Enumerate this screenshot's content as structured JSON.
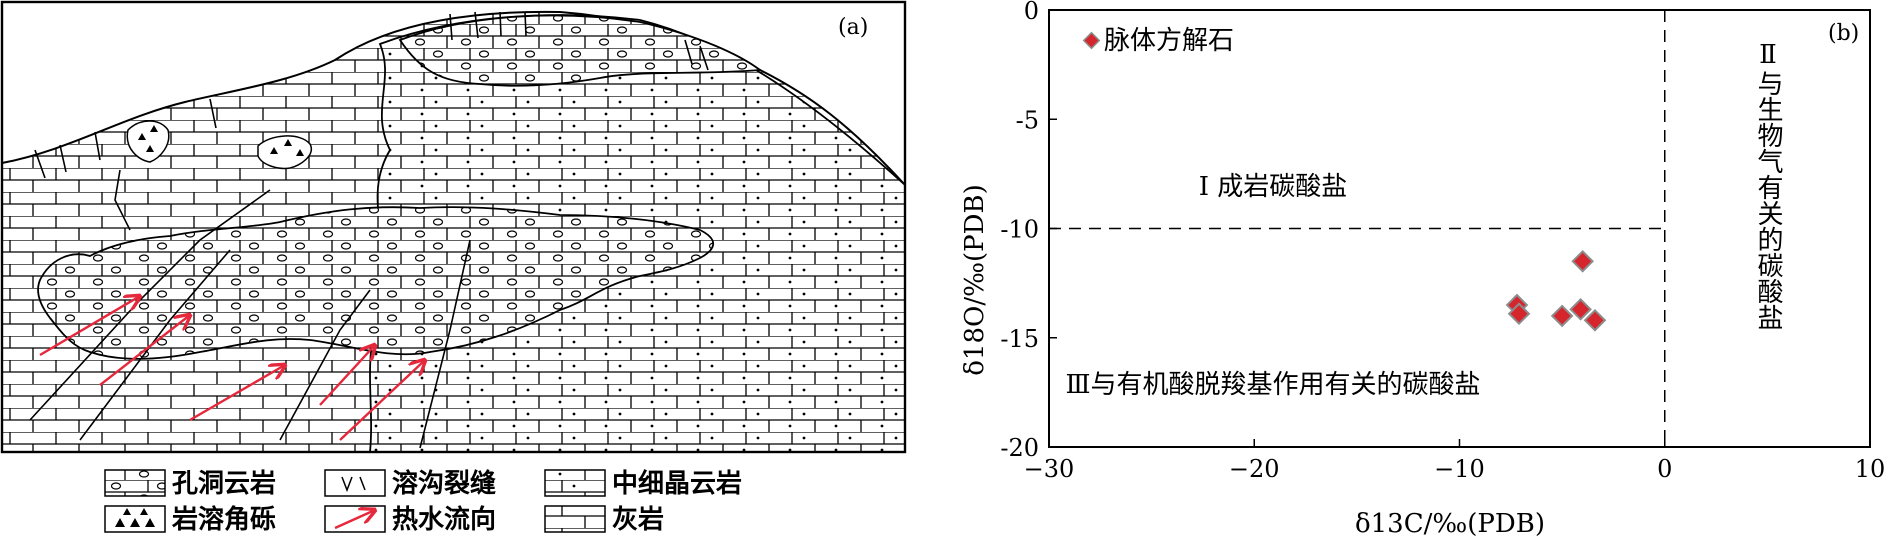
{
  "panel_a": {
    "label": "(a)",
    "legend": [
      {
        "text": "孔洞云岩",
        "icon": "vuggy-dolomite-icon"
      },
      {
        "text": "溶沟裂缝",
        "icon": "karst-fissure-icon"
      },
      {
        "text": "中细晶云岩",
        "icon": "crystalline-dolomite-icon"
      },
      {
        "text": "岩溶角砾",
        "icon": "karst-breccia-icon"
      },
      {
        "text": "热水流向",
        "icon": "red-arrow-icon"
      },
      {
        "text": "灰岩",
        "icon": "limestone-brick-icon"
      }
    ],
    "colors": {
      "arrow": "#e5283c",
      "line": "#000000"
    }
  },
  "chart_data": {
    "type": "scatter",
    "label": "(b)",
    "xlabel": "δ13C/‰(PDB)",
    "ylabel": "δ18O/‰(PDB)",
    "xlim": [
      -30,
      10
    ],
    "ylim": [
      -20,
      0
    ],
    "xticks": [
      "−30",
      "−20",
      "−10",
      "0",
      "10"
    ],
    "yticks": [
      "0",
      "-5",
      "-10",
      "-15",
      "-20"
    ],
    "legend": {
      "text": "脉体方解石",
      "placement": "top-left"
    },
    "marker_color": "#d6262d",
    "marker_edge": "#8c8c8c",
    "series": [
      {
        "name": "脉体方解石",
        "points": [
          [
            -7.2,
            -13.5
          ],
          [
            -7.1,
            -13.9
          ],
          [
            -4.0,
            -11.5
          ],
          [
            -5.0,
            -14.0
          ],
          [
            -4.1,
            -13.7
          ],
          [
            -3.4,
            -14.2
          ]
        ]
      }
    ],
    "dividers": {
      "x": 0,
      "y": -10
    },
    "regions": [
      {
        "text": "Ⅰ 成岩碳酸盐"
      },
      {
        "text": "Ⅲ与有机酸脱羧基作用有关的碳酸盐"
      },
      {
        "text": "Ⅱ与生物气有关的碳酸盐"
      }
    ]
  }
}
